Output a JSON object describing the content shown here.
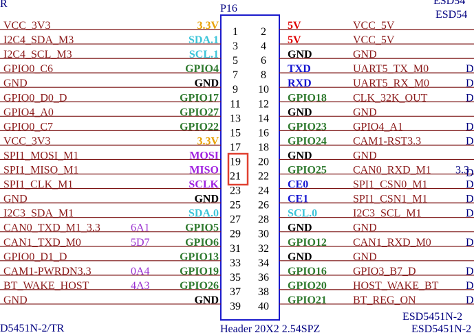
{
  "header": {
    "title": "P16",
    "footer": "Header 20X2 2.54SPZ"
  },
  "fragments": [
    "R",
    "ESD54",
    "ESD54",
    "D5451N-2/TR",
    "ESD5451N-2",
    "ESD5451N-2"
  ],
  "rows": [
    {
      "left_net": "VCC_3V3",
      "left_label": {
        "text": "3.3V",
        "color": "#e8a000"
      },
      "left_pin": "1",
      "right_pin": "2",
      "right_label": {
        "text": "5V",
        "color": "#e00000"
      },
      "right_net": "VCC_5V"
    },
    {
      "left_net": "I2C4_SDA_M3",
      "left_label": {
        "text": "SDA.1",
        "color": "#3cc4d8"
      },
      "left_pin": "3",
      "right_pin": "4",
      "right_label": {
        "text": "5V",
        "color": "#e00000"
      },
      "right_net": "VCC_5V"
    },
    {
      "left_net": "I2C4_SCL_M3",
      "left_label": {
        "text": "SCL.1",
        "color": "#3cc4d8"
      },
      "left_pin": "5",
      "right_pin": "6",
      "right_label": {
        "text": "GND",
        "color": "#000000"
      },
      "right_net": "GND"
    },
    {
      "left_net": "GPIO0_C6",
      "left_label": {
        "text": "GPIO4",
        "color": "#2f7a2f"
      },
      "left_pin": "7",
      "right_pin": "8",
      "right_label": {
        "text": "TXD",
        "color": "#1414d0"
      },
      "right_net": "UART5_TX_M0",
      "extras": [
        "D"
      ]
    },
    {
      "left_net": "GND",
      "left_label": {
        "text": "GND",
        "color": "#000000"
      },
      "left_pin": "9",
      "right_pin": "10",
      "right_label": {
        "text": "RXD",
        "color": "#1414d0"
      },
      "right_net": "UART5_RX_M0",
      "extras": [
        "D"
      ]
    },
    {
      "left_net": "GPIO0_D0_D",
      "left_label": {
        "text": "GPIO17",
        "color": "#2f7a2f"
      },
      "left_pin": "11",
      "right_pin": "12",
      "right_label": {
        "text": "GPIO18",
        "color": "#2f7a2f"
      },
      "right_net": "CLK_32K_OUT",
      "extras": [
        "D"
      ]
    },
    {
      "left_net": "GPIO4_A0",
      "left_label": {
        "text": "GPIO27",
        "color": "#2f7a2f"
      },
      "left_pin": "13",
      "right_pin": "14",
      "right_label": {
        "text": "GND",
        "color": "#000000"
      },
      "right_net": "GND"
    },
    {
      "left_net": "GPIO0_C7",
      "left_label": {
        "text": "GPIO22",
        "color": "#2f7a2f"
      },
      "left_pin": "15",
      "right_pin": "16",
      "right_label": {
        "text": "GPIO23",
        "color": "#2f7a2f"
      },
      "right_net": "GPIO4_A1",
      "extras": [
        "D"
      ]
    },
    {
      "left_net": "VCC_3V3",
      "left_label": {
        "text": "3.3V",
        "color": "#e8a000"
      },
      "left_pin": "17",
      "right_pin": "18",
      "right_label": {
        "text": "GPIO24",
        "color": "#2f7a2f"
      },
      "right_net": "CAM1-RST3.3",
      "extras": [
        "D"
      ]
    },
    {
      "left_net": "SPI1_MOSI_M1",
      "left_label": {
        "text": "MOSI",
        "color": "#a020e0"
      },
      "left_pin": "19",
      "right_pin": "20",
      "right_label": {
        "text": "GND",
        "color": "#000000"
      },
      "right_net": "GND"
    },
    {
      "left_net": "SPI1_MISO_M1",
      "left_label": {
        "text": "MISO",
        "color": "#a020e0"
      },
      "left_pin": "21",
      "right_pin": "22",
      "right_label": {
        "text": "GPIO25",
        "color": "#2f7a2f"
      },
      "right_net": "CAN0_RXD_M1",
      "extras": [
        "3.3",
        "D"
      ]
    },
    {
      "left_net": "SPI1_CLK_M1",
      "left_label": {
        "text": "SCLK",
        "color": "#a020e0"
      },
      "left_pin": "23",
      "right_pin": "24",
      "right_label": {
        "text": "CE0",
        "color": "#1414d0"
      },
      "right_net": "SPI1_CSN0_M1",
      "extras": [
        "D"
      ]
    },
    {
      "left_net": "GND",
      "left_label": {
        "text": "GND",
        "color": "#000000"
      },
      "left_pin": "25",
      "right_pin": "26",
      "right_label": {
        "text": "CE1",
        "color": "#1414d0"
      },
      "right_net": "SPI1_CSN1_M1",
      "extras": [
        "D"
      ]
    },
    {
      "left_net": "I2C3_SDA_M1",
      "left_label": {
        "text": "SDA.0",
        "color": "#3cc4d8"
      },
      "left_pin": "27",
      "right_pin": "28",
      "right_label": {
        "text": "SCL.0",
        "color": "#3cc4d8"
      },
      "right_net": "I2C3_SCL_M1",
      "extras": [
        "D"
      ]
    },
    {
      "left_net": "CAN0_TXD_M1_3.3",
      "left_tag": "6A1",
      "left_label": {
        "text": "GPIO5",
        "color": "#2f7a2f"
      },
      "left_pin": "29",
      "right_pin": "30",
      "right_label": {
        "text": "GND",
        "color": "#000000"
      },
      "right_net": "GND"
    },
    {
      "left_net": "CAN1_TXD_M0",
      "left_tag": "5D7",
      "left_label": {
        "text": "GPIO6",
        "color": "#2f7a2f"
      },
      "left_pin": "31",
      "right_pin": "32",
      "right_label": {
        "text": "GPIO12",
        "color": "#2f7a2f"
      },
      "right_net": "CAN1_RXD_M0",
      "extras": [
        "D"
      ]
    },
    {
      "left_net": "GPIO0_D1_D",
      "left_label": {
        "text": "GPIO13",
        "color": "#2f7a2f"
      },
      "left_pin": "33",
      "right_pin": "34",
      "right_label": {
        "text": "GND",
        "color": "#000000"
      },
      "right_net": "GND"
    },
    {
      "left_net": "CAM1-PWRDN3.3",
      "left_tag": "0A4",
      "left_label": {
        "text": "GPIO19",
        "color": "#2f7a2f"
      },
      "left_pin": "35",
      "right_pin": "36",
      "right_label": {
        "text": "GPIO16",
        "color": "#2f7a2f"
      },
      "right_net": "GPIO3_B7_D",
      "extras": [
        "D"
      ]
    },
    {
      "left_net": "BT_WAKE_HOST",
      "left_tag": "4A3",
      "left_label": {
        "text": "GPIO26",
        "color": "#2f7a2f"
      },
      "left_pin": "37",
      "right_pin": "38",
      "right_label": {
        "text": "GPIO20",
        "color": "#2f7a2f"
      },
      "right_net": "HOST_WAKE_BT",
      "extras": [
        "D"
      ]
    },
    {
      "left_net": "GND",
      "left_label": {
        "text": "GND",
        "color": "#000000"
      },
      "left_pin": "39",
      "right_pin": "40",
      "right_label": {
        "text": "GPIO21",
        "color": "#2f7a2f"
      },
      "right_net": "BT_REG_ON",
      "extras": [
        "D"
      ]
    }
  ]
}
